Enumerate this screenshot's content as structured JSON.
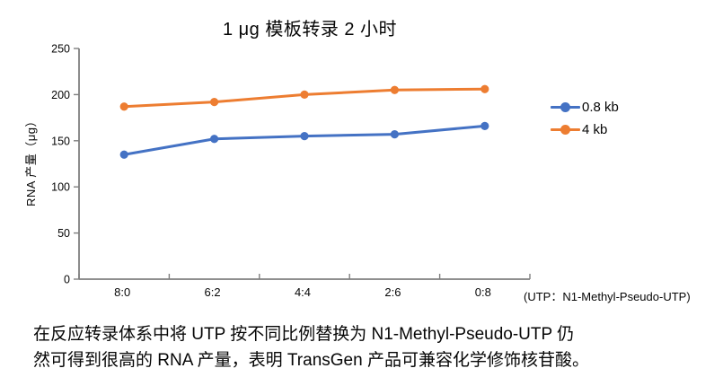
{
  "chart_data": {
    "type": "line",
    "title": "1 μg 模板转录 2 小时",
    "ylabel": "RNA 产量（μg）",
    "x_note": "(UTP：N1-Methyl-Pseudo-UTP)",
    "categories": [
      "8:0",
      "6:2",
      "4:4",
      "2:6",
      "0:8"
    ],
    "series": [
      {
        "name": "0.8 kb",
        "color": "#4472C4",
        "values": [
          135,
          152,
          155,
          157,
          166
        ]
      },
      {
        "name": "4 kb",
        "color": "#ED7D31",
        "values": [
          187,
          192,
          200,
          205,
          206
        ]
      }
    ],
    "ylim": [
      0,
      250
    ],
    "yticks": [
      0,
      50,
      100,
      150,
      200,
      250
    ],
    "grid": false,
    "legend_position": "right",
    "axis_color": "#7F7F7F",
    "marker": "circle"
  },
  "caption": {
    "line1": "在反应转录体系中将 UTP 按不同比例替换为 N1-Methyl-Pseudo-UTP 仍",
    "line2": "然可得到很高的 RNA 产量，表明 TransGen 产品可兼容化学修饰核苷酸。"
  }
}
